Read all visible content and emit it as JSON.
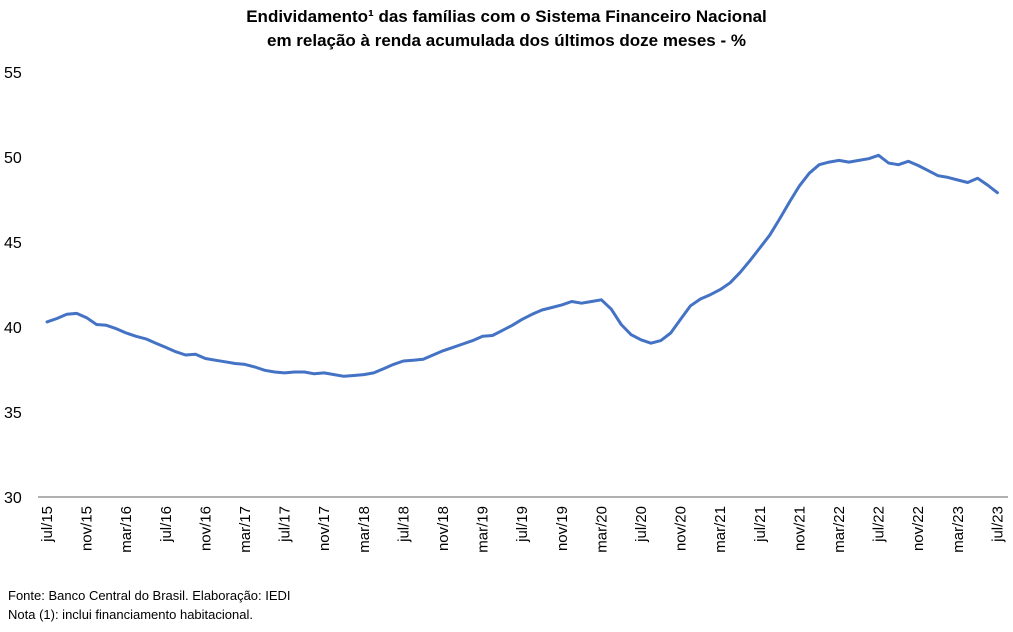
{
  "chart_data": {
    "type": "line",
    "title_line1": "Endividamento¹ das famílias com o Sistema Financeiro Nacional",
    "title_line2": "em relação à renda acumulada dos últimos doze meses - %",
    "series_name": "Endividamento das famílias com o SFN (%)",
    "legend": "none",
    "grid": false,
    "ylim": [
      30,
      55
    ],
    "y_ticks": [
      30,
      35,
      40,
      45,
      50,
      55
    ],
    "x_tick_interval_months": 4,
    "x_tick_labels": [
      "jul/15",
      "nov/15",
      "mar/16",
      "jul/16",
      "nov/16",
      "mar/17",
      "jul/17",
      "nov/17",
      "mar/18",
      "jul/18",
      "nov/18",
      "mar/19",
      "jul/19",
      "nov/19",
      "mar/20",
      "jul/20",
      "nov/20",
      "mar/21",
      "jul/21",
      "nov/21",
      "mar/22",
      "jul/22",
      "nov/22",
      "mar/23",
      "jul/23"
    ],
    "line_color": "#4472C4",
    "axis_color": "#808080",
    "text_color": "#000000",
    "monthly_values": [
      40.3,
      40.5,
      40.75,
      40.8,
      40.55,
      40.15,
      40.1,
      39.9,
      39.65,
      39.45,
      39.3,
      39.05,
      38.8,
      38.55,
      38.35,
      38.4,
      38.15,
      38.05,
      37.95,
      37.85,
      37.8,
      37.65,
      37.45,
      37.35,
      37.3,
      37.35,
      37.35,
      37.25,
      37.3,
      37.2,
      37.1,
      37.15,
      37.2,
      37.3,
      37.55,
      37.8,
      38.0,
      38.05,
      38.1,
      38.35,
      38.6,
      38.8,
      39.0,
      39.2,
      39.45,
      39.5,
      39.8,
      40.1,
      40.45,
      40.75,
      41.0,
      41.15,
      41.3,
      41.5,
      41.4,
      41.5,
      41.6,
      41.05,
      40.15,
      39.55,
      39.25,
      39.05,
      39.2,
      39.65,
      40.45,
      41.25,
      41.65,
      41.9,
      42.2,
      42.6,
      43.2,
      43.9,
      44.65,
      45.4,
      46.35,
      47.35,
      48.3,
      49.05,
      49.55,
      49.7,
      49.8,
      49.7,
      49.8,
      49.9,
      50.1,
      49.65,
      49.55,
      49.75,
      49.5,
      49.2,
      48.9,
      48.8,
      48.65,
      48.5,
      48.75,
      48.35,
      47.9
    ]
  },
  "footer": {
    "source": "Fonte: Banco Central do Brasil. Elaboração: IEDI",
    "note": "Nota (1): inclui financiamento habitacional."
  }
}
